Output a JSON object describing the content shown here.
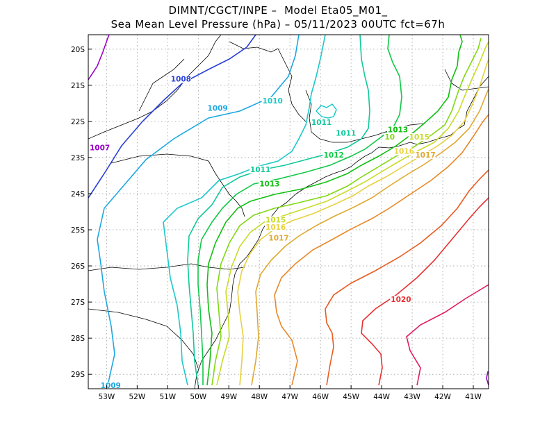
{
  "title": {
    "line1": "DIMNT/CGCT/INPE –  Model Eta05_M01_",
    "line2": "Sea Mean Level Pressure (hPa) – 05/11/2023 00UTC fct=67h"
  },
  "map": {
    "lon_range": [
      -53.6,
      -40.5
    ],
    "lat_range": [
      -29.4,
      -19.6
    ],
    "lon_ticks": [
      "53W",
      "52W",
      "51W",
      "50W",
      "49W",
      "48W",
      "47W",
      "46W",
      "45W",
      "44W",
      "43W",
      "42W",
      "41W"
    ],
    "lat_ticks": [
      "20S",
      "21S",
      "22S",
      "23S",
      "24S",
      "25S",
      "26S",
      "27S",
      "28S",
      "29S"
    ]
  },
  "contour_colors": {
    "1007": "#9b00c8",
    "1008": "#2840d8",
    "1009": "#1ca8e0",
    "1010": "#1cc8c8",
    "1011": "#10c89a",
    "1012": "#10c848",
    "1013": "#10c010",
    "1014": "#80d810",
    "1015": "#c8dc28",
    "1016": "#e8d040",
    "1017": "#e0a830",
    "1018": "#e88828",
    "1019": "#e85c20",
    "1020": "#e83030",
    "1021": "#e01c60",
    "1022": "#d01ca0"
  },
  "labels": [
    {
      "text": "1007",
      "lon": -53.6,
      "lat": -22.8,
      "level": "1007"
    },
    {
      "text": "1008",
      "lon": -50.9,
      "lat": -20.9,
      "level": "1008"
    },
    {
      "text": "1009",
      "lon": -49.7,
      "lat": -21.7,
      "level": "1009"
    },
    {
      "text": "1010",
      "lon": -47.9,
      "lat": -21.5,
      "level": "1010"
    },
    {
      "text": "1011",
      "lon": -46.3,
      "lat": -22.1,
      "level": "1011"
    },
    {
      "text": "1011",
      "lon": -45.5,
      "lat": -22.4,
      "level": "1011"
    },
    {
      "text": "1011",
      "lon": -48.3,
      "lat": -23.4,
      "level": "1011"
    },
    {
      "text": "1012",
      "lon": -45.9,
      "lat": -23.0,
      "level": "1012"
    },
    {
      "text": "1013",
      "lon": -48.0,
      "lat": -23.8,
      "level": "1013"
    },
    {
      "text": "1013",
      "lon": -43.8,
      "lat": -22.3,
      "level": "1013"
    },
    {
      "text": "10",
      "lon": -43.9,
      "lat": -22.5,
      "level": "1014"
    },
    {
      "text": "1015",
      "lon": -43.1,
      "lat": -22.5,
      "level": "1015"
    },
    {
      "text": "1016",
      "lon": -43.6,
      "lat": -22.9,
      "level": "1016"
    },
    {
      "text": "1017",
      "lon": -42.9,
      "lat": -23.0,
      "level": "1017"
    },
    {
      "text": "1015",
      "lon": -47.8,
      "lat": -24.8,
      "level": "1015"
    },
    {
      "text": "1016",
      "lon": -47.8,
      "lat": -25.0,
      "level": "1016"
    },
    {
      "text": "1017",
      "lon": -47.7,
      "lat": -25.3,
      "level": "1017"
    },
    {
      "text": "1020",
      "lon": -43.7,
      "lat": -27.0,
      "level": "1020"
    },
    {
      "text": "1009",
      "lon": -53.2,
      "lat": -29.4,
      "level": "1009"
    }
  ]
}
